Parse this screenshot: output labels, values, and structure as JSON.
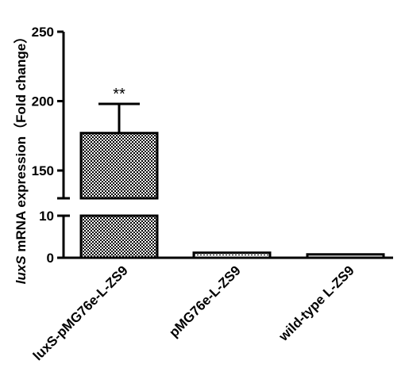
{
  "chart_data": {
    "type": "bar",
    "categories": [
      "luxS-pMG76e-L-ZS9",
      "pMG76e-L-ZS9",
      "wild-type L-ZS9"
    ],
    "values": [
      177,
      1.2,
      0.8
    ],
    "error_upper": [
      198,
      null,
      null
    ],
    "annotations": [
      "**",
      "",
      ""
    ],
    "ylabel_italic": "luxS",
    "ylabel_rest": " mRNA expression（Fold change）",
    "y_axis_break": true,
    "y_segments": [
      {
        "range": [
          0,
          10
        ],
        "ticks": [
          "0",
          "10"
        ]
      },
      {
        "range": [
          130,
          250
        ],
        "ticks": [
          "150",
          "200",
          "250"
        ]
      }
    ],
    "colors": {
      "bar_pattern": "#000000",
      "bar_background": "#ffffff"
    }
  }
}
